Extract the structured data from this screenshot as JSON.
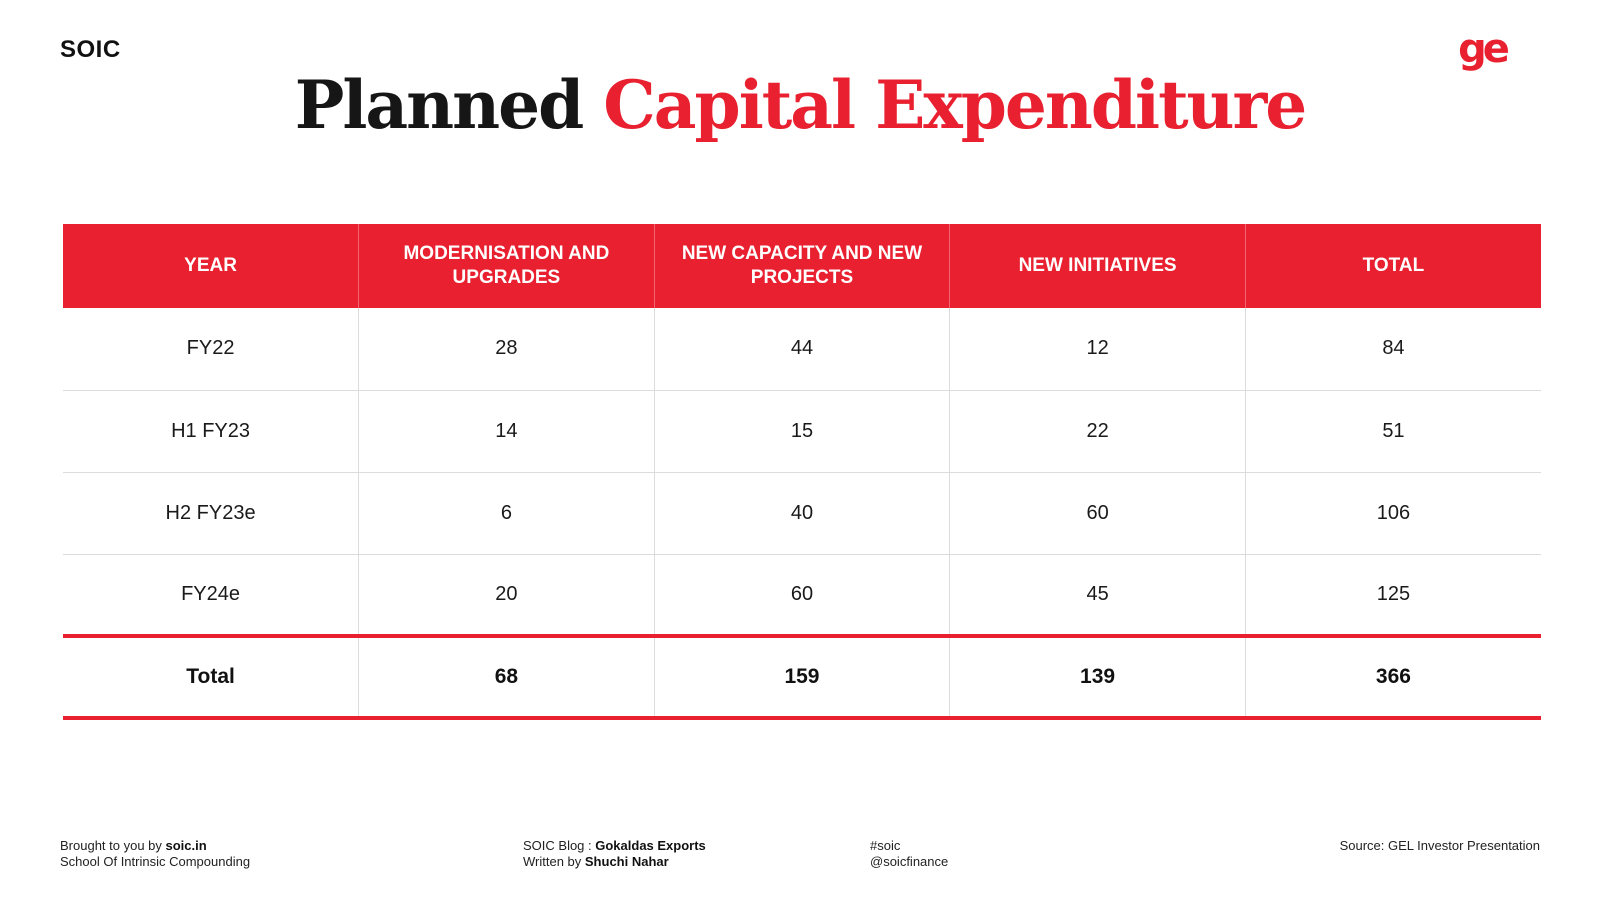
{
  "brand": "SOIC",
  "logo_text": "ge",
  "colors": {
    "accent": "#e8202f",
    "text": "#1a1a1a",
    "divider": "#dcdcdc"
  },
  "title": {
    "part1": "Planned",
    "part2": "Capital Expenditure"
  },
  "chart_data": {
    "type": "table",
    "title": "Planned Capital Expenditure",
    "columns": [
      "YEAR",
      "MODERNISATION AND UPGRADES",
      "NEW CAPACITY AND NEW PROJECTS",
      "NEW INITIATIVES",
      "TOTAL"
    ],
    "rows": [
      [
        "FY22",
        "28",
        "44",
        "12",
        "84"
      ],
      [
        "H1 FY23",
        "14",
        "15",
        "22",
        "51"
      ],
      [
        "H2 FY23e",
        "6",
        "40",
        "60",
        "106"
      ],
      [
        "FY24e",
        "20",
        "60",
        "45",
        "125"
      ]
    ],
    "total_row": [
      "Total",
      "68",
      "159",
      "139",
      "366"
    ]
  },
  "footer": {
    "left": {
      "prefix": "Brought to you by ",
      "site": "soic.in",
      "line2": "School Of Intrinsic Compounding"
    },
    "middle": {
      "prefix": "SOIC Blog : ",
      "blog": "Gokaldas Exports",
      "prefix2": "Written by ",
      "author": "Shuchi Nahar"
    },
    "tags": {
      "line1": "#soic",
      "line2": "@soicfinance"
    },
    "source": "Source: GEL Investor Presentation"
  }
}
